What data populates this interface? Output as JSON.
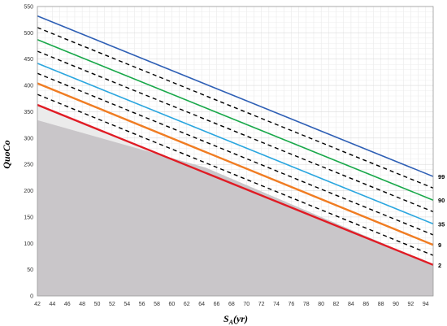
{
  "chart_data": {
    "type": "line",
    "title": "",
    "xlabel": {
      "main": "S",
      "sub": "A",
      "unit": "(yr)"
    },
    "ylabel": "QuoCo",
    "xlim": [
      42,
      95
    ],
    "ylim": [
      0,
      550
    ],
    "x_ticks": [
      42,
      44,
      46,
      48,
      50,
      52,
      54,
      56,
      58,
      60,
      62,
      64,
      66,
      68,
      70,
      72,
      74,
      76,
      78,
      80,
      82,
      84,
      86,
      88,
      90,
      92,
      94
    ],
    "y_ticks": [
      0,
      50,
      100,
      150,
      200,
      250,
      300,
      350,
      400,
      450,
      500,
      550
    ],
    "grid": true,
    "x": [
      42,
      95
    ],
    "series": [
      {
        "values": [
          532,
          227
        ],
        "color": "#2e5fb5",
        "style": "solid",
        "label": "99"
      },
      {
        "values": [
          510,
          205
        ],
        "color": "#000000",
        "style": "dashed",
        "label": ""
      },
      {
        "values": [
          487,
          182
        ],
        "color": "#19a84a",
        "style": "solid",
        "label": "90"
      },
      {
        "values": [
          465,
          160
        ],
        "color": "#000000",
        "style": "dashed",
        "label": ""
      },
      {
        "values": [
          442,
          137
        ],
        "color": "#2aa6df",
        "style": "solid",
        "label": "35"
      },
      {
        "values": [
          423,
          116
        ],
        "color": "#000000",
        "style": "dashed",
        "label": ""
      },
      {
        "values": [
          404,
          97
        ],
        "color": "#f07c22",
        "style": "solid",
        "label": "9"
      },
      {
        "values": [
          383,
          77
        ],
        "color": "#000000",
        "style": "dashed",
        "label": ""
      },
      {
        "values": [
          363,
          59
        ],
        "color": "#e01b24",
        "style": "solid",
        "label": "2"
      }
    ],
    "regions": [
      {
        "name": "dark-gray",
        "color": "#c9c6c9",
        "x": [
          42,
          64.5,
          95
        ],
        "values": [
          334,
          244,
          59
        ]
      },
      {
        "name": "light-gray",
        "color": "#ebebeb"
      }
    ],
    "percentile_labels": [
      "99",
      "90",
      "35",
      "9",
      "2"
    ]
  }
}
